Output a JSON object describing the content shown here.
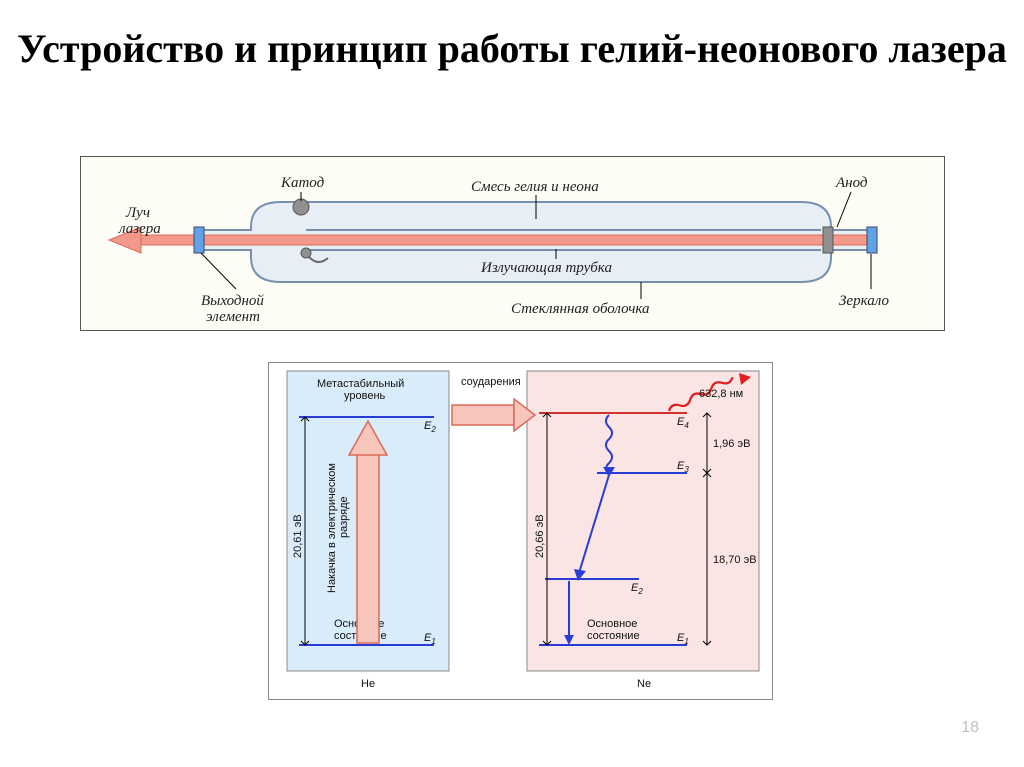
{
  "title": "Устройство и принцип работы гелий-неонового лазера",
  "page_number": "18",
  "tube": {
    "bg": "#fdfdf5",
    "outline": "#7890b0",
    "tube_fill": "#e8eef6",
    "beam_fill": "#f2998c",
    "beam_stroke": "#d96a55",
    "mirror_fill": "#5fa3e6",
    "cathode_fill": "#a0a0a0",
    "capillary_stroke": "#7890b0",
    "labels": {
      "laser_beam": "Луч лазера",
      "cathode": "Катод",
      "gas_mix": "Смесь гелия и неона",
      "anode": "Анод",
      "output": "Выходной элемент",
      "emitting_tube": "Излучающая трубка",
      "glass_shell": "Стеклянная оболочка",
      "mirror": "Зеркало"
    }
  },
  "energy": {
    "he_bg": "#d9ecfa",
    "ne_bg": "#fae4e4",
    "level_color": "#2a3cd6",
    "e4_color": "#d03030",
    "pump_fill": "#f8c5bd",
    "pump_stroke": "#d96a55",
    "collision_arrow": "#d03030",
    "wavy_color": "#e02020",
    "labels": {
      "metastable": "Метастабильный уровень",
      "ground": "Основное состояние",
      "ground2": "Основное состояние",
      "pump": "Накачка в электрическом разряде",
      "collisions": "соударения",
      "he": "He",
      "ne": "Ne",
      "wavelength": "632,8 нм",
      "e1": "E",
      "e1s": "1",
      "e2": "E",
      "e2s": "2",
      "e3": "E",
      "e3s": "3",
      "e4": "E",
      "e4s": "4",
      "he_gap": "20,61 эВ",
      "ne_gap": "20,66 эВ",
      "gap_196": "1,96 эВ",
      "gap_1870": "18,70 эВ"
    }
  }
}
